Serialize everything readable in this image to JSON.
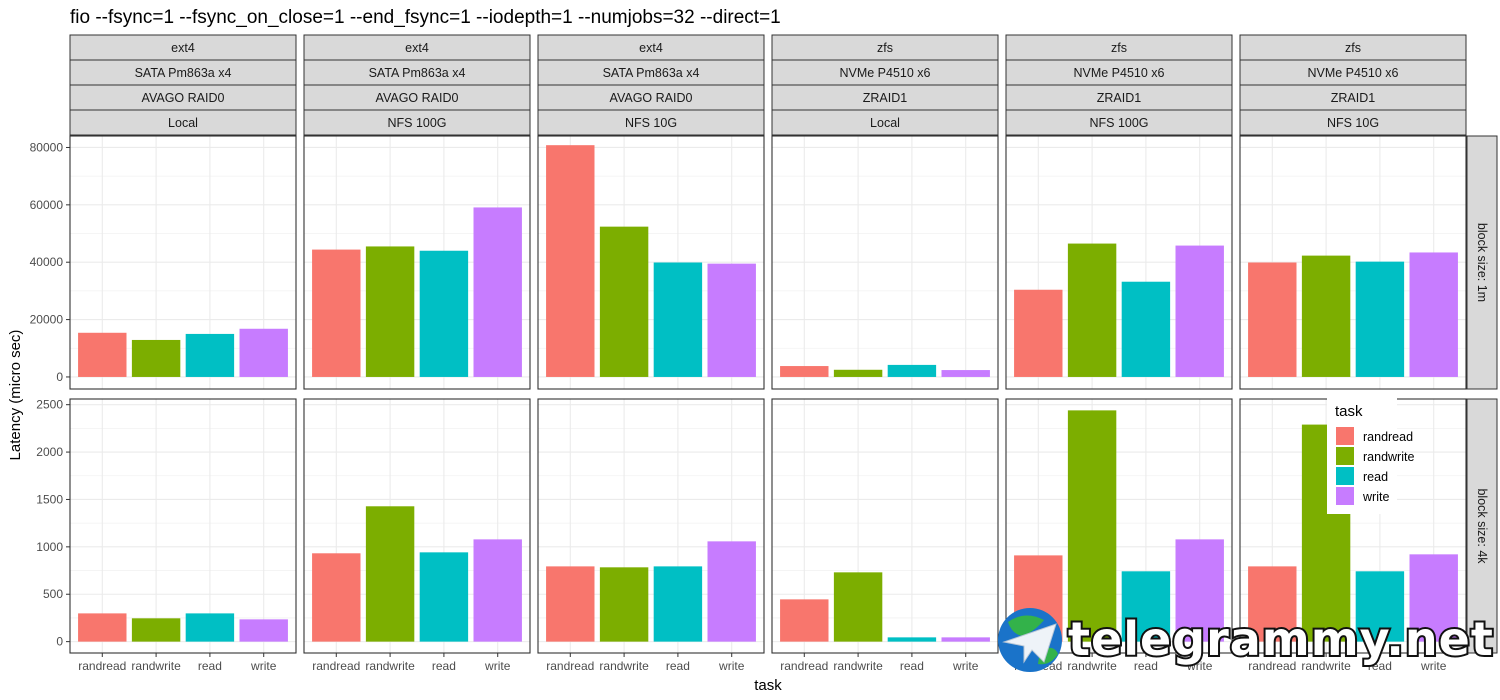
{
  "chart_data": {
    "type": "bar",
    "title": "fio --fsync=1 --fsync_on_close=1 --end_fsync=1 --iodepth=1 --numjobs=32 --direct=1",
    "xlabel": "task",
    "ylabel": "Latency (micro sec)",
    "categories": [
      "randread",
      "randwrite",
      "read",
      "write"
    ],
    "colors": {
      "randread": "#F8766D",
      "randwrite": "#7CAE00",
      "read": "#00BFC4",
      "write": "#C77CFF"
    },
    "legend": {
      "title": "task",
      "entries": [
        "randread",
        "randwrite",
        "read",
        "write"
      ],
      "placement": "inside bottom-right panel, top"
    },
    "columns": [
      {
        "strips": [
          "ext4",
          "SATA Pm863a x4",
          "AVAGO RAID0",
          "Local"
        ]
      },
      {
        "strips": [
          "ext4",
          "SATA Pm863a x4",
          "AVAGO RAID0",
          "NFS 100G"
        ]
      },
      {
        "strips": [
          "ext4",
          "SATA Pm863a x4",
          "AVAGO RAID0",
          "NFS 10G"
        ]
      },
      {
        "strips": [
          "zfs",
          "NVMe P4510 x6",
          "ZRAID1",
          "Local"
        ]
      },
      {
        "strips": [
          "zfs",
          "NVMe P4510 x6",
          "ZRAID1",
          "NFS 100G"
        ]
      },
      {
        "strips": [
          "zfs",
          "NVMe P4510 x6",
          "ZRAID1",
          "NFS 10G"
        ]
      }
    ],
    "rows": [
      {
        "label": "block size: 1m",
        "ylim": [
          0,
          84000
        ],
        "yticks": [
          0,
          20000,
          40000,
          60000,
          80000
        ],
        "values": [
          [
            15400,
            12900,
            15000,
            16800
          ],
          [
            44400,
            45500,
            44000,
            59100
          ],
          [
            80800,
            52400,
            39900,
            39500
          ],
          [
            3800,
            2500,
            4200,
            2400
          ],
          [
            30400,
            46500,
            33200,
            45800
          ],
          [
            39900,
            42300,
            40200,
            43400
          ]
        ]
      },
      {
        "label": "block size: 4k",
        "ylim": [
          -120,
          2560
        ],
        "yticks": [
          0,
          500,
          1000,
          1500,
          2000,
          2500
        ],
        "values": [
          [
            298,
            246,
            298,
            235
          ],
          [
            932,
            1428,
            942,
            1079
          ],
          [
            794,
            784,
            794,
            1058
          ],
          [
            446,
            731,
            45,
            45
          ],
          [
            910,
            2440,
            742,
            1079
          ],
          [
            794,
            2290,
            742,
            921
          ]
        ]
      }
    ],
    "grid": true
  },
  "watermark": {
    "text": "telegrammy.net",
    "icon": "telegram-globe-icon"
  }
}
